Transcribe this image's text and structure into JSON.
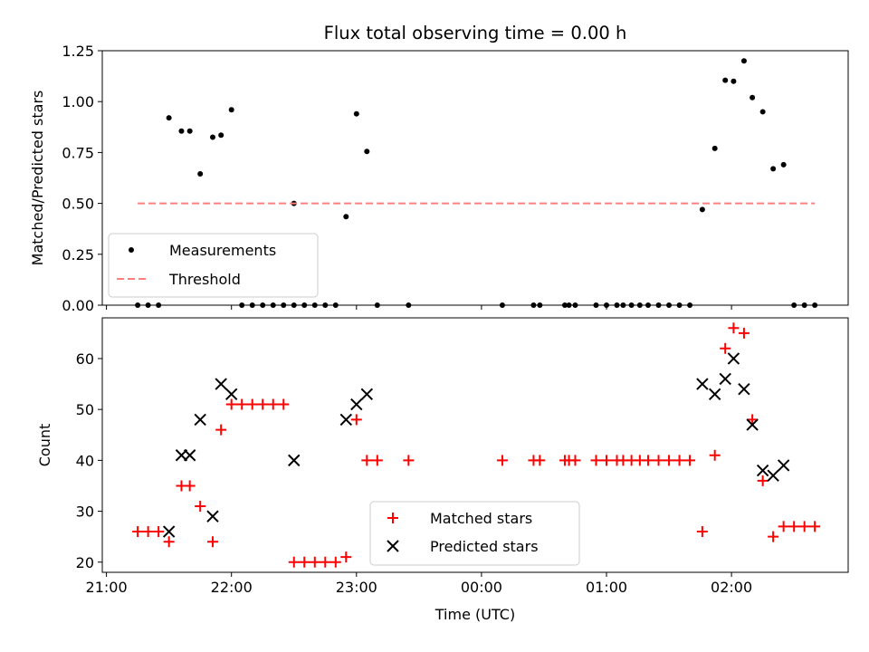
{
  "chart_data": [
    {
      "type": "scatter",
      "title": "Flux total observing time = 0.00 h",
      "xlabel": "",
      "ylabel": "Matched/Predicted stars",
      "ylim": [
        0,
        1.25
      ],
      "xlim": [
        "20:58",
        "02:56"
      ],
      "yticks": [
        "0.00",
        "0.25",
        "0.50",
        "0.75",
        "1.00",
        "1.25"
      ],
      "legend_position": "bottom-left",
      "series": [
        {
          "name": "Measurements",
          "color": "#000000",
          "marker": "dot",
          "points": [
            [
              "21:15",
              0
            ],
            [
              "21:20",
              0
            ],
            [
              "21:25",
              0
            ],
            [
              "21:30",
              0.92
            ],
            [
              "21:36",
              0.855
            ],
            [
              "21:40",
              0.855
            ],
            [
              "21:45",
              0.645
            ],
            [
              "21:51",
              0.825
            ],
            [
              "21:55",
              0.835
            ],
            [
              "22:00",
              0.96
            ],
            [
              "22:05",
              0
            ],
            [
              "22:10",
              0
            ],
            [
              "22:15",
              0
            ],
            [
              "22:20",
              0
            ],
            [
              "22:25",
              0
            ],
            [
              "22:30",
              0
            ],
            [
              "22:30",
              0.5
            ],
            [
              "22:35",
              0
            ],
            [
              "22:40",
              0
            ],
            [
              "22:45",
              0
            ],
            [
              "22:50",
              0
            ],
            [
              "22:55",
              0.435
            ],
            [
              "23:00",
              0.94
            ],
            [
              "23:05",
              0.755
            ],
            [
              "23:10",
              0
            ],
            [
              "23:25",
              0
            ],
            [
              "00:10",
              0
            ],
            [
              "00:25",
              0
            ],
            [
              "00:28",
              0
            ],
            [
              "00:40",
              0
            ],
            [
              "00:42",
              0
            ],
            [
              "00:45",
              0
            ],
            [
              "00:55",
              0
            ],
            [
              "01:00",
              0
            ],
            [
              "01:05",
              0
            ],
            [
              "01:08",
              0
            ],
            [
              "01:12",
              0
            ],
            [
              "01:16",
              0
            ],
            [
              "01:20",
              0
            ],
            [
              "01:25",
              0
            ],
            [
              "01:30",
              0
            ],
            [
              "01:35",
              0
            ],
            [
              "01:40",
              0
            ],
            [
              "01:46",
              0.47
            ],
            [
              "01:52",
              0.77
            ],
            [
              "01:57",
              1.105
            ],
            [
              "02:01",
              1.1
            ],
            [
              "02:06",
              1.2
            ],
            [
              "02:10",
              1.02
            ],
            [
              "02:15",
              0.95
            ],
            [
              "02:20",
              0.67
            ],
            [
              "02:25",
              0.69
            ],
            [
              "02:30",
              0
            ],
            [
              "02:35",
              0
            ],
            [
              "02:40",
              0
            ]
          ]
        },
        {
          "name": "Threshold",
          "color": "#ff7f7f",
          "style": "dashed-line",
          "points": [
            [
              "21:15",
              0.5
            ],
            [
              "02:40",
              0.5
            ]
          ]
        }
      ]
    },
    {
      "type": "scatter",
      "title": "",
      "xlabel": "Time (UTC)",
      "ylabel": "Count",
      "ylim": [
        18,
        68
      ],
      "xlim": [
        "20:58",
        "02:56"
      ],
      "yticks": [
        "20",
        "30",
        "40",
        "50",
        "60"
      ],
      "xticks": [
        "21:00",
        "22:00",
        "23:00",
        "00:00",
        "01:00",
        "02:00"
      ],
      "legend_position": "bottom-center",
      "series": [
        {
          "name": "Matched stars",
          "color": "#ff0000",
          "marker": "plus",
          "points": [
            [
              "21:15",
              26
            ],
            [
              "21:20",
              26
            ],
            [
              "21:25",
              26
            ],
            [
              "21:30",
              24
            ],
            [
              "21:36",
              35
            ],
            [
              "21:40",
              35
            ],
            [
              "21:45",
              31
            ],
            [
              "21:51",
              24
            ],
            [
              "21:55",
              46
            ],
            [
              "22:00",
              51
            ],
            [
              "22:05",
              51
            ],
            [
              "22:10",
              51
            ],
            [
              "22:15",
              51
            ],
            [
              "22:20",
              51
            ],
            [
              "22:25",
              51
            ],
            [
              "22:30",
              20
            ],
            [
              "22:35",
              20
            ],
            [
              "22:40",
              20
            ],
            [
              "22:45",
              20
            ],
            [
              "22:50",
              20
            ],
            [
              "22:55",
              21
            ],
            [
              "23:00",
              48
            ],
            [
              "23:05",
              40
            ],
            [
              "23:10",
              40
            ],
            [
              "23:25",
              40
            ],
            [
              "00:10",
              40
            ],
            [
              "00:25",
              40
            ],
            [
              "00:28",
              40
            ],
            [
              "00:40",
              40
            ],
            [
              "00:42",
              40
            ],
            [
              "00:45",
              40
            ],
            [
              "00:55",
              40
            ],
            [
              "01:00",
              40
            ],
            [
              "01:05",
              40
            ],
            [
              "01:08",
              40
            ],
            [
              "01:12",
              40
            ],
            [
              "01:16",
              40
            ],
            [
              "01:20",
              40
            ],
            [
              "01:25",
              40
            ],
            [
              "01:30",
              40
            ],
            [
              "01:35",
              40
            ],
            [
              "01:40",
              40
            ],
            [
              "01:46",
              26
            ],
            [
              "01:52",
              41
            ],
            [
              "01:57",
              62
            ],
            [
              "02:01",
              66
            ],
            [
              "02:06",
              65
            ],
            [
              "02:10",
              48
            ],
            [
              "02:15",
              36
            ],
            [
              "02:20",
              25
            ],
            [
              "02:25",
              27
            ],
            [
              "02:30",
              27
            ],
            [
              "02:35",
              27
            ],
            [
              "02:40",
              27
            ]
          ]
        },
        {
          "name": "Predicted stars",
          "color": "#000000",
          "marker": "x",
          "points": [
            [
              "21:30",
              26
            ],
            [
              "21:36",
              41
            ],
            [
              "21:40",
              41
            ],
            [
              "21:45",
              48
            ],
            [
              "21:51",
              29
            ],
            [
              "21:55",
              55
            ],
            [
              "22:00",
              53
            ],
            [
              "22:30",
              40
            ],
            [
              "22:55",
              48
            ],
            [
              "23:00",
              51
            ],
            [
              "23:05",
              53
            ],
            [
              "01:46",
              55
            ],
            [
              "01:52",
              53
            ],
            [
              "01:57",
              56
            ],
            [
              "02:01",
              60
            ],
            [
              "02:06",
              54
            ],
            [
              "02:10",
              47
            ],
            [
              "02:15",
              38
            ],
            [
              "02:20",
              37
            ],
            [
              "02:25",
              39
            ]
          ]
        }
      ]
    }
  ]
}
